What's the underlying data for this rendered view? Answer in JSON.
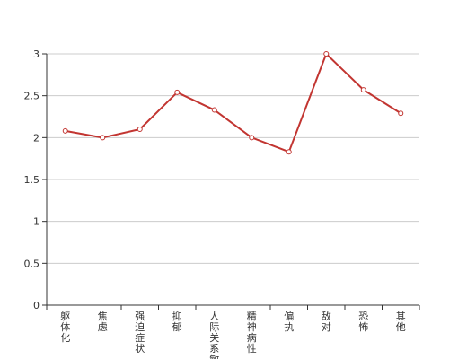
{
  "chart_data": {
    "type": "line",
    "categories": [
      "躯体化",
      "焦虑",
      "强迫症状",
      "抑郁",
      "人际关系敏感",
      "精神病性",
      "偏执",
      "敌对",
      "恐怖",
      "其他"
    ],
    "series": [
      {
        "values": [
          2.08,
          2.0,
          2.1,
          2.54,
          2.33,
          2.0,
          1.83,
          3.0,
          2.57,
          2.29
        ]
      }
    ],
    "yticks": [
      "0",
      "0.5",
      "1",
      "1.5",
      "2",
      "2.5",
      "3"
    ],
    "ylim": [
      0,
      3
    ],
    "grid": true,
    "colors": {
      "line": "#c23531",
      "grid": "#cccccc",
      "axis": "#333333"
    }
  }
}
